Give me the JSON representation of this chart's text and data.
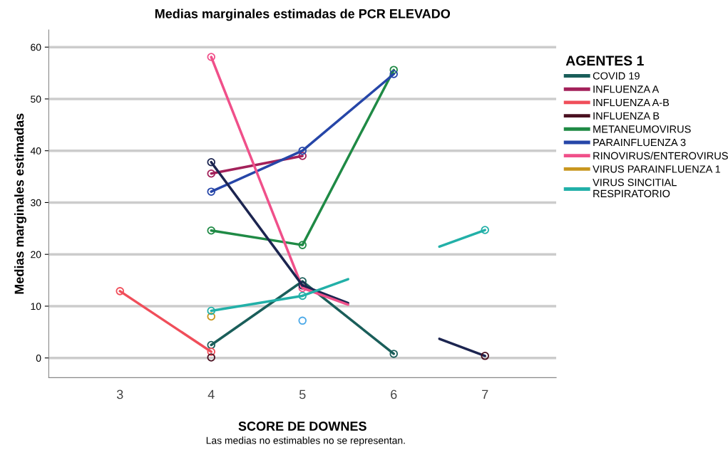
{
  "chart_data": {
    "type": "line",
    "title": "Medias marginales estimadas de PCR ELEVADO",
    "xlabel": "SCORE DE DOWNES",
    "ylabel": "Medias marginales estimadas",
    "legend_title": "AGENTES 1",
    "annotations": [
      "Las medias no estimables no se representan."
    ],
    "xlim": [
      2.22,
      7.78
    ],
    "xticks": [
      3,
      4,
      5,
      6,
      7
    ],
    "ylim": [
      -3.8,
      63.3
    ],
    "yticks": [
      0,
      10,
      20,
      30,
      40,
      50,
      60
    ],
    "grid": "y",
    "legend": "right",
    "marker": "circle",
    "line_style": "solid",
    "series": [
      {
        "name": "COVID 19",
        "color": "#1a5e5a",
        "x": [
          4,
          5,
          6
        ],
        "values": [
          2.5,
          14.8,
          0.8
        ]
      },
      {
        "name": "INFLUENZA A",
        "color": "#a3215a",
        "x": [
          4,
          5
        ],
        "values": [
          35.6,
          39
        ]
      },
      {
        "name": "INFLUENZA A-B",
        "color": "#f04e5a",
        "x": [
          3,
          4
        ],
        "values": [
          12.9,
          1.2
        ]
      },
      {
        "name": "INFLUENZA B",
        "type": "scatter",
        "color": "#4a1020",
        "x": [
          4,
          7
        ],
        "values": [
          0.1,
          0.4
        ]
      },
      {
        "name": "METANEUMOVIRUS",
        "color": "#1f8a45",
        "x": [
          4,
          5,
          6
        ],
        "values": [
          24.6,
          21.8,
          55.6
        ]
      },
      {
        "name": "PARAINFLUENZA 3",
        "color": "#2646a8",
        "x": [
          4,
          5,
          6
        ],
        "values": [
          32.1,
          40,
          54.8
        ]
      },
      {
        "name": "RINOVIRUS/ENTEROVIRUS",
        "color": "#f0508a",
        "x": [
          4,
          5
        ],
        "values": [
          58.1,
          13.5
        ]
      },
      {
        "name": "VIRUS PARAINFLUENZA 1",
        "color": "#c8961e",
        "x": [
          4
        ],
        "values": [
          8
        ]
      },
      {
        "name": "VIRUS SINCITIAL RESPIRATORIO",
        "color": "#22b0a8",
        "x": [
          4,
          5
        ],
        "values": [
          9.1,
          12
        ]
      },
      {
        "color": "#1c2550",
        "x": [
          4,
          5
        ],
        "values": [
          37.8,
          14
        ]
      },
      {
        "color": "#1c2550",
        "x": [
          5,
          5.5
        ],
        "values": [
          14,
          10.6
        ],
        "marker": "none"
      },
      {
        "color": "#1c2550",
        "x": [
          6.5,
          7
        ],
        "values": [
          3.7,
          0.4
        ],
        "marker": "none"
      },
      {
        "color": "#f0508a",
        "x": [
          5,
          5.5
        ],
        "values": [
          13.5,
          10.3
        ],
        "marker": "none"
      },
      {
        "color": "#22b0a8",
        "x": [
          5,
          5.5
        ],
        "values": [
          12,
          15.2
        ],
        "marker": "none"
      },
      {
        "color": "#22b0a8",
        "x": [
          6.5,
          7
        ],
        "values": [
          21.5,
          24.7
        ],
        "marker": "none"
      },
      {
        "color": "#22b0a8",
        "x": [
          7
        ],
        "values": [
          24.7
        ]
      },
      {
        "type": "scatter",
        "color": "#4aa8e8",
        "x": [
          5
        ],
        "values": [
          7.2
        ]
      }
    ]
  }
}
